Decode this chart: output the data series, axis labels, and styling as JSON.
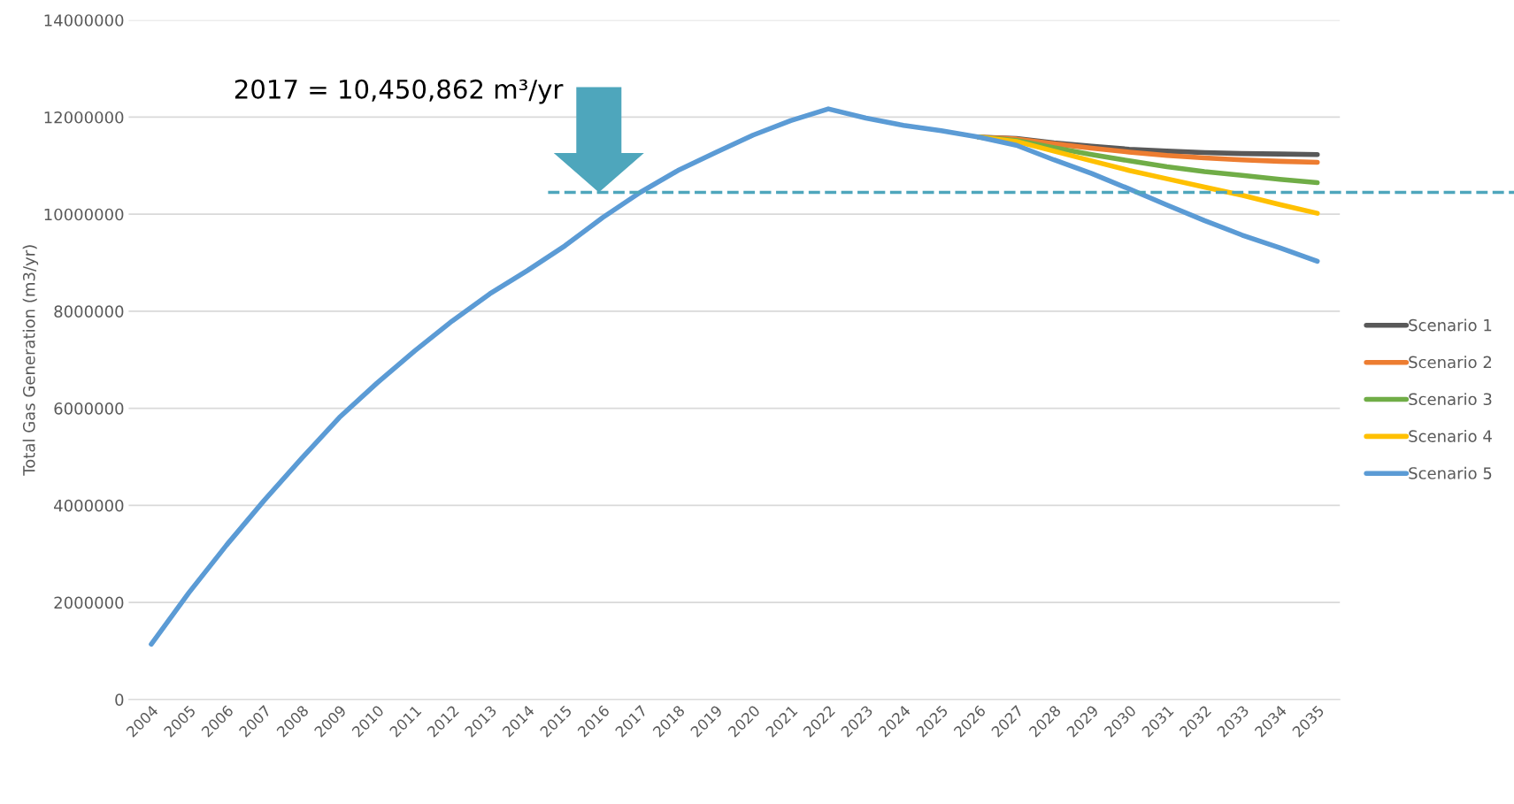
{
  "chart_data": {
    "type": "line",
    "ylabel": "Total Gas Generation (m3/yr)",
    "categories": [
      "2004",
      "2005",
      "2006",
      "2007",
      "2008",
      "2009",
      "2010",
      "2011",
      "2012",
      "2013",
      "2014",
      "2015",
      "2016",
      "2017",
      "2018",
      "2019",
      "2020",
      "2021",
      "2022",
      "2023",
      "2024",
      "2025",
      "2026",
      "2027",
      "2028",
      "2029",
      "2030",
      "2031",
      "2032",
      "2033",
      "2034",
      "2035"
    ],
    "series": [
      {
        "name": "Scenario 1",
        "color": "#595959",
        "values": [
          null,
          null,
          null,
          null,
          null,
          null,
          null,
          null,
          null,
          null,
          null,
          null,
          null,
          null,
          null,
          null,
          null,
          null,
          null,
          null,
          null,
          null,
          11590000,
          11560000,
          11470000,
          11400000,
          11340000,
          11300000,
          11270000,
          11250000,
          11240000,
          11230000
        ]
      },
      {
        "name": "Scenario 2",
        "color": "#ed7d31",
        "values": [
          null,
          null,
          null,
          null,
          null,
          null,
          null,
          null,
          null,
          null,
          null,
          null,
          null,
          null,
          null,
          null,
          null,
          null,
          null,
          null,
          null,
          null,
          11590000,
          11550000,
          11450000,
          11360000,
          11280000,
          11210000,
          11160000,
          11120000,
          11090000,
          11070000
        ]
      },
      {
        "name": "Scenario 3",
        "color": "#70ad47",
        "values": [
          null,
          null,
          null,
          null,
          null,
          null,
          null,
          null,
          null,
          null,
          null,
          null,
          null,
          null,
          null,
          null,
          null,
          null,
          null,
          null,
          null,
          null,
          11590000,
          11520000,
          11370000,
          11230000,
          11100000,
          10980000,
          10880000,
          10800000,
          10720000,
          10650000
        ]
      },
      {
        "name": "Scenario 4",
        "color": "#ffc000",
        "values": [
          null,
          null,
          null,
          null,
          null,
          null,
          null,
          null,
          null,
          null,
          null,
          null,
          null,
          null,
          null,
          null,
          null,
          null,
          null,
          null,
          null,
          null,
          11590000,
          11500000,
          11300000,
          11100000,
          10900000,
          10730000,
          10560000,
          10390000,
          10200000,
          10020000
        ]
      },
      {
        "name": "Scenario 5",
        "color": "#5b9bd5",
        "values": [
          1140000,
          2200000,
          3180000,
          4100000,
          4970000,
          5810000,
          6520000,
          7180000,
          7800000,
          8360000,
          8840000,
          9350000,
          9930000,
          10450000,
          10900000,
          11270000,
          11630000,
          11930000,
          12170000,
          11980000,
          11830000,
          11720000,
          11590000,
          11420000,
          11120000,
          10840000,
          10520000,
          10190000,
          9870000,
          9570000,
          9310000,
          9030000
        ]
      }
    ],
    "ylim": [
      0,
      14000000
    ],
    "yticks": [
      0,
      2000000,
      4000000,
      6000000,
      8000000,
      10000000,
      12000000,
      14000000
    ],
    "ref_lines": [
      {
        "axis": "y",
        "value": 10450862,
        "color": "#4ea6bc",
        "line_style": "dashed"
      }
    ],
    "annotations": [
      "2017 = 10,450,862 m³/yr"
    ],
    "grid": "y",
    "legend": "right",
    "marker": "none",
    "line_style": "solid"
  }
}
